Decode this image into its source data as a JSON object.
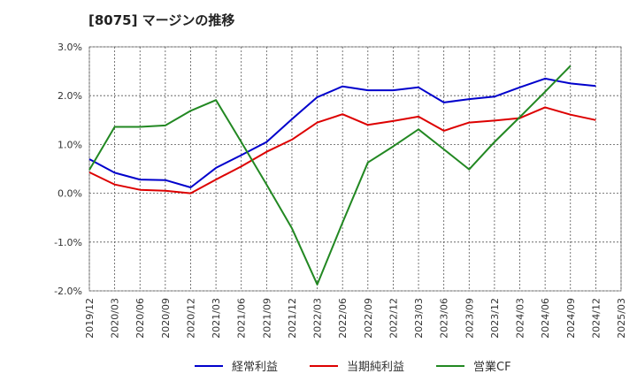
{
  "chart_data": {
    "type": "line",
    "title": "[8075]  マージンの推移",
    "y_tick_labels": [
      "3.0%",
      "2.0%",
      "1.0%",
      "0.0%",
      "-1.0%",
      "-2.0%"
    ],
    "y_ticks": [
      3.0,
      2.0,
      1.0,
      0.0,
      -1.0,
      -2.0
    ],
    "ylim": [
      -2.0,
      3.0
    ],
    "x_tick_labels": [
      "2019/12",
      "2020/03",
      "2020/06",
      "2020/09",
      "2020/12",
      "2021/03",
      "2021/06",
      "2021/09",
      "2021/12",
      "2022/03",
      "2022/06",
      "2022/09",
      "2022/12",
      "2023/03",
      "2023/06",
      "2023/09",
      "2023/12",
      "2024/03",
      "2024/06",
      "2024/09",
      "2024/12",
      "2025/03"
    ],
    "grid": true,
    "legend_position": "bottom",
    "series": [
      {
        "name": "経常利益",
        "color": "#0000cc",
        "x": [
          "2019/12",
          "2020/03",
          "2020/06",
          "2020/09",
          "2020/12",
          "2021/03",
          "2021/06",
          "2021/09",
          "2021/12",
          "2022/03",
          "2022/06",
          "2022/09",
          "2022/12",
          "2023/03",
          "2023/06",
          "2023/09",
          "2023/12",
          "2024/03",
          "2024/06",
          "2024/09",
          "2024/12"
        ],
        "values": [
          0.7,
          0.42,
          0.28,
          0.27,
          0.12,
          0.52,
          0.78,
          1.05,
          1.52,
          1.97,
          2.19,
          2.11,
          2.11,
          2.17,
          1.86,
          1.93,
          1.98,
          2.17,
          2.35,
          2.25,
          2.2
        ]
      },
      {
        "name": "当期純利益",
        "color": "#dd0000",
        "x": [
          "2019/12",
          "2020/03",
          "2020/06",
          "2020/09",
          "2020/12",
          "2021/03",
          "2021/06",
          "2021/09",
          "2021/12",
          "2022/03",
          "2022/06",
          "2022/09",
          "2022/12",
          "2023/03",
          "2023/06",
          "2023/09",
          "2023/12",
          "2024/03",
          "2024/06",
          "2024/09",
          "2024/12"
        ],
        "values": [
          0.43,
          0.18,
          0.07,
          0.05,
          0.0,
          0.28,
          0.55,
          0.85,
          1.1,
          1.45,
          1.62,
          1.4,
          1.48,
          1.57,
          1.28,
          1.45,
          1.49,
          1.54,
          1.76,
          1.61,
          1.5
        ]
      },
      {
        "name": "営業CF",
        "color": "#228822",
        "x": [
          "2019/12",
          "2020/03",
          "2020/06",
          "2020/09",
          "2020/12",
          "2021/03",
          "2021/06",
          "2021/09",
          "2021/12",
          "2022/03",
          "2022/06",
          "2022/09",
          "2022/12",
          "2023/03",
          "2023/06",
          "2023/09",
          "2023/12",
          "2024/03",
          "2024/06",
          "2024/09"
        ],
        "values": [
          0.48,
          1.36,
          1.36,
          1.39,
          1.69,
          1.91,
          1.05,
          0.18,
          -0.72,
          -1.87,
          -0.6,
          0.63,
          0.96,
          1.31,
          0.9,
          0.49,
          1.05,
          1.56,
          2.08,
          2.61
        ]
      }
    ]
  }
}
